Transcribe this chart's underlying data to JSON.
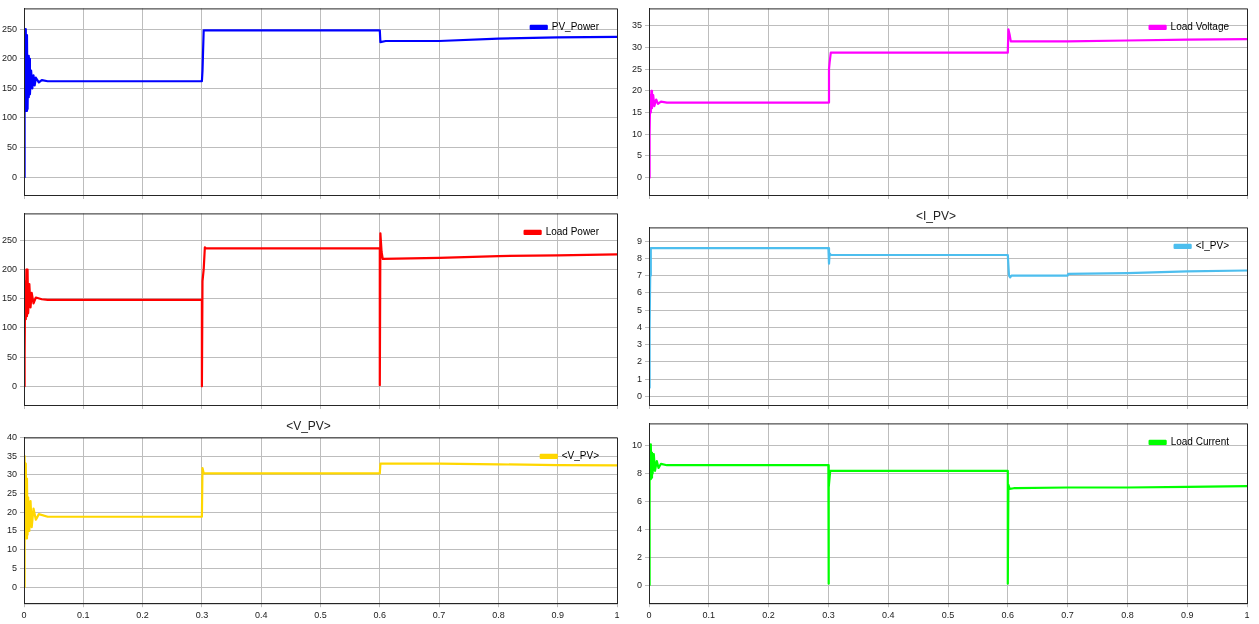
{
  "chart_data": [
    {
      "type": "line",
      "x": [
        0,
        0.001,
        0.002,
        0.003,
        0.004,
        0.005,
        0.006,
        0.007,
        0.008,
        0.009,
        0.01,
        0.012,
        0.014,
        0.016,
        0.018,
        0.02,
        0.025,
        0.03,
        0.04,
        0.3,
        0.301,
        0.303,
        0.6,
        0.601,
        0.61,
        0.7,
        0.8,
        0.9,
        1
      ],
      "series": [
        {
          "name": "PV_Power",
          "color": "#0000ff",
          "values": [
            0,
            250,
            120,
            250,
            112,
            240,
            115,
            205,
            135,
            200,
            140,
            180,
            150,
            172,
            155,
            168,
            160,
            164,
            162,
            162,
            180,
            248,
            248,
            228,
            230,
            230,
            234,
            236,
            237
          ]
        }
      ],
      "xlim": [
        0,
        1
      ],
      "xticks": [
        0,
        0.1,
        0.2,
        0.3,
        0.4,
        0.5,
        0.6,
        0.7,
        0.8,
        0.9,
        1
      ],
      "ylim": [
        -30,
        285
      ],
      "yticks": [
        0,
        50,
        100,
        150,
        200,
        250
      ],
      "grid": true,
      "legend": "top right",
      "tick_labels": "y"
    },
    {
      "type": "line",
      "x": [
        0,
        0.001,
        0.002,
        0.003,
        0.004,
        0.005,
        0.007,
        0.009,
        0.012,
        0.015,
        0.02,
        0.03,
        0.3,
        0.301,
        0.302,
        0.304,
        0.6,
        0.601,
        0.603,
        0.605,
        0.7,
        0.8,
        0.9,
        1
      ],
      "series": [
        {
          "name": "Load Voltage",
          "color": "#ff00ff",
          "values": [
            0,
            10,
            19,
            15,
            20,
            16,
            19,
            16.5,
            18,
            17,
            17.5,
            17.3,
            17.3,
            25,
            26.5,
            28.8,
            28.8,
            34.2,
            33,
            31.4,
            31.4,
            31.6,
            31.8,
            31.9
          ]
        }
      ],
      "xlim": [
        0,
        1
      ],
      "xticks": [
        0,
        0.1,
        0.2,
        0.3,
        0.4,
        0.5,
        0.6,
        0.7,
        0.8,
        0.9,
        1
      ],
      "ylim": [
        -4,
        39
      ],
      "yticks": [
        0,
        5,
        10,
        15,
        20,
        25,
        30,
        35
      ],
      "grid": true,
      "legend": "top right",
      "tick_labels": "y"
    },
    {
      "type": "line",
      "x": [
        0,
        0.001,
        0.002,
        0.003,
        0.004,
        0.005,
        0.006,
        0.007,
        0.009,
        0.011,
        0.013,
        0.016,
        0.02,
        0.03,
        0.04,
        0.3,
        0.3,
        0.301,
        0.303,
        0.305,
        0.307,
        0.6,
        0.6,
        0.601,
        0.603,
        0.605,
        0.7,
        0.8,
        0.9,
        1
      ],
      "series": [
        {
          "name": "Load Power",
          "color": "#ff0000",
          "values": [
            0,
            50,
            180,
            115,
            200,
            120,
            200,
            125,
            175,
            135,
            160,
            142,
            152,
            149,
            148,
            148,
            0,
            180,
            200,
            238,
            236,
            236,
            2,
            262,
            230,
            218,
            220,
            223,
            224,
            226
          ]
        }
      ],
      "xlim": [
        0,
        1
      ],
      "xticks": [
        0,
        0.1,
        0.2,
        0.3,
        0.4,
        0.5,
        0.6,
        0.7,
        0.8,
        0.9,
        1
      ],
      "ylim": [
        -32,
        296
      ],
      "yticks": [
        0,
        50,
        100,
        150,
        200,
        250
      ],
      "grid": true,
      "legend": "top right",
      "tick_labels": "y"
    },
    {
      "type": "line",
      "title": "<I_PV>",
      "x": [
        0,
        0.001,
        0.002,
        0.003,
        0.3,
        0.301,
        0.302,
        0.304,
        0.6,
        0.602,
        0.604,
        0.606,
        0.7,
        0.701,
        0.8,
        0.9,
        1
      ],
      "series": [
        {
          "name": "<I_PV>",
          "color": "#4dbeee",
          "values": [
            0.5,
            4,
            7,
            8.6,
            8.6,
            7.7,
            8.3,
            8.2,
            8.2,
            7.0,
            6.9,
            7.0,
            7.0,
            7.1,
            7.15,
            7.25,
            7.3
          ]
        }
      ],
      "xlim": [
        0,
        1
      ],
      "xticks": [
        0,
        0.1,
        0.2,
        0.3,
        0.4,
        0.5,
        0.6,
        0.7,
        0.8,
        0.9,
        1
      ],
      "ylim": [
        -0.5,
        9.8
      ],
      "yticks": [
        0,
        1,
        2,
        3,
        4,
        5,
        6,
        7,
        8,
        9
      ],
      "grid": true,
      "legend": "top right",
      "tick_labels": "y"
    },
    {
      "type": "line",
      "title": "<V_PV>",
      "x": [
        0,
        0.001,
        0.002,
        0.003,
        0.004,
        0.005,
        0.006,
        0.007,
        0.009,
        0.011,
        0.013,
        0.016,
        0.02,
        0.025,
        0.04,
        0.3,
        0.301,
        0.303,
        0.6,
        0.601,
        0.7,
        0.8,
        0.9,
        1
      ],
      "series": [
        {
          "name": "<V_PV>",
          "color": "#ffd700",
          "values": [
            0,
            35,
            13,
            33,
            13,
            29,
            14,
            24,
            15,
            23,
            16,
            21,
            18,
            19.5,
            18.8,
            18.8,
            31.8,
            30.4,
            30.4,
            33,
            33,
            32.8,
            32.6,
            32.5
          ]
        }
      ],
      "xlim": [
        0,
        1
      ],
      "xticks": [
        0,
        0.1,
        0.2,
        0.3,
        0.4,
        0.5,
        0.6,
        0.7,
        0.8,
        0.9,
        1
      ],
      "ylim": [
        -4.3,
        40
      ],
      "yticks": [
        0,
        5,
        10,
        15,
        20,
        25,
        30,
        35,
        40
      ],
      "grid": true,
      "legend": "top right"
    },
    {
      "type": "line",
      "x": [
        0,
        0.001,
        0.002,
        0.003,
        0.004,
        0.005,
        0.006,
        0.008,
        0.01,
        0.013,
        0.016,
        0.02,
        0.03,
        0.3,
        0.3,
        0.301,
        0.303,
        0.6,
        0.6,
        0.601,
        0.603,
        0.61,
        0.7,
        0.8,
        0.9,
        1
      ],
      "series": [
        {
          "name": "Load Current",
          "color": "#00ff00",
          "values": [
            0,
            9,
            7.6,
            10.1,
            7.7,
            9.5,
            8,
            9.4,
            8.2,
            8.9,
            8.4,
            8.7,
            8.6,
            8.6,
            0.1,
            7,
            8.2,
            8.2,
            0.1,
            7.2,
            6.9,
            6.95,
            7.0,
            7.0,
            7.05,
            7.1
          ]
        }
      ],
      "xlim": [
        0,
        1
      ],
      "xticks": [
        0,
        0.1,
        0.2,
        0.3,
        0.4,
        0.5,
        0.6,
        0.7,
        0.8,
        0.9,
        1
      ],
      "ylim": [
        -1.3,
        11.6
      ],
      "yticks": [
        0,
        2,
        4,
        6,
        8,
        10
      ],
      "grid": true,
      "legend": "top right"
    }
  ]
}
